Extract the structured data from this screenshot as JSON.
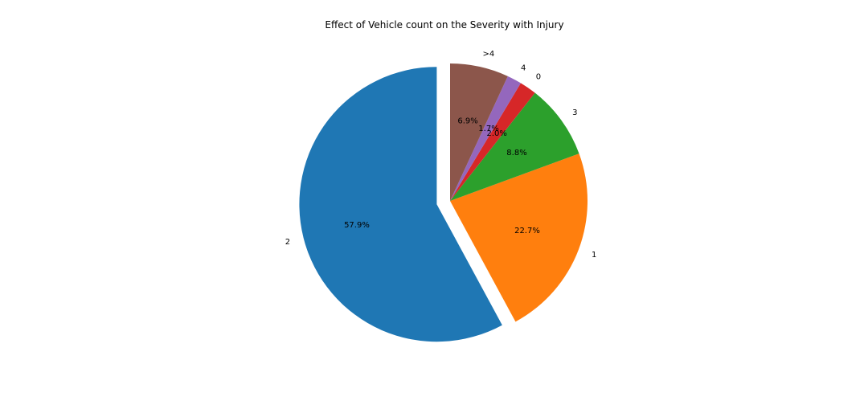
{
  "chart_data": {
    "type": "pie",
    "title": "Effect of Vehicle count on the Severity with Injury",
    "categories": [
      "2",
      "1",
      "3",
      "0",
      "4",
      ">4"
    ],
    "values": [
      57.9,
      22.7,
      8.8,
      2.0,
      1.7,
      6.9
    ],
    "percent_labels": [
      "57.9%",
      "22.7%",
      "8.8%",
      "2.0%",
      "1.7%",
      "6.9%"
    ],
    "colors": [
      "#1f77b4",
      "#ff7f0e",
      "#2ca02c",
      "#d62728",
      "#9467bd",
      "#8c564b"
    ],
    "exploded": [
      "2"
    ],
    "start_angle_deg": 90,
    "direction": "counterclockwise",
    "legend": "none"
  }
}
